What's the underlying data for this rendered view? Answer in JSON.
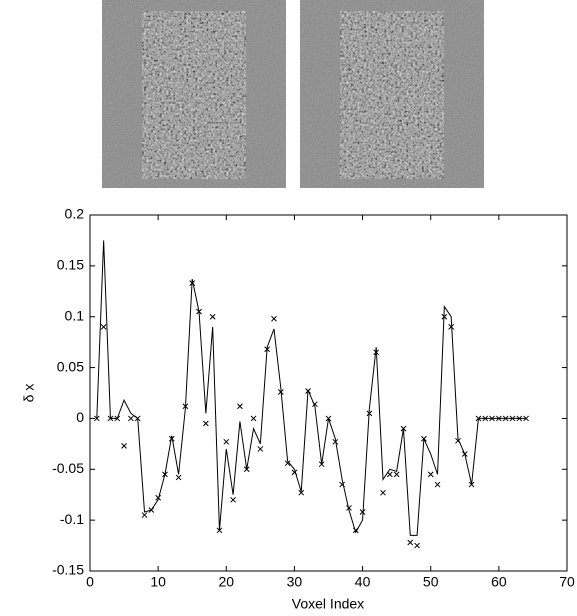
{
  "chart_data": {
    "type": "line",
    "xlabel": "Voxel Index",
    "ylabel": "δ x",
    "x": [
      1,
      2,
      3,
      4,
      5,
      6,
      7,
      8,
      9,
      10,
      11,
      12,
      13,
      14,
      15,
      16,
      17,
      18,
      19,
      20,
      21,
      22,
      23,
      24,
      25,
      26,
      27,
      28,
      29,
      30,
      31,
      32,
      33,
      34,
      35,
      36,
      37,
      38,
      39,
      40,
      41,
      42,
      43,
      44,
      45,
      46,
      47,
      48,
      49,
      50,
      51,
      52,
      53,
      54,
      55,
      56,
      57,
      58,
      59,
      60,
      61,
      62,
      63,
      64
    ],
    "series": [
      {
        "style": "line",
        "color": "#000000",
        "values": [
          0,
          0.175,
          0,
          0,
          0.018,
          0.005,
          0,
          -0.092,
          -0.09,
          -0.08,
          -0.055,
          -0.017,
          -0.055,
          0.01,
          0.137,
          0.105,
          0.005,
          0.09,
          -0.11,
          -0.03,
          -0.075,
          -0.003,
          -0.05,
          -0.01,
          -0.025,
          0.07,
          0.088,
          0.03,
          -0.042,
          -0.05,
          -0.072,
          0.028,
          0.012,
          -0.045,
          0,
          -0.02,
          -0.06,
          -0.09,
          -0.112,
          -0.1,
          0.01,
          0.07,
          -0.06,
          -0.05,
          -0.052,
          -0.01,
          -0.115,
          -0.115,
          -0.02,
          -0.035,
          -0.055,
          0.11,
          0.1,
          -0.02,
          -0.035,
          -0.065,
          0,
          0,
          0,
          0,
          0,
          0,
          0,
          0
        ]
      },
      {
        "style": "marker",
        "color": "#000000",
        "values": [
          0,
          0.09,
          0,
          0,
          -0.027,
          0,
          0,
          -0.095,
          -0.09,
          -0.078,
          -0.055,
          -0.02,
          -0.058,
          0.012,
          0.133,
          0.105,
          -0.005,
          0.1,
          -0.11,
          -0.023,
          -0.08,
          0.012,
          -0.05,
          0,
          -0.03,
          0.068,
          0.098,
          0.026,
          -0.044,
          -0.053,
          -0.073,
          0.027,
          0.014,
          -0.045,
          0,
          -0.023,
          -0.065,
          -0.088,
          -0.11,
          -0.092,
          0.005,
          0.065,
          -0.073,
          -0.055,
          -0.055,
          -0.01,
          -0.122,
          -0.125,
          -0.02,
          -0.055,
          -0.065,
          0.1,
          0.09,
          -0.022,
          -0.035,
          -0.065,
          0,
          0,
          0,
          0,
          0,
          0,
          0,
          0
        ]
      }
    ],
    "xlim": [
      0,
      70
    ],
    "xticks": [
      0,
      10,
      20,
      30,
      40,
      50,
      60,
      70
    ],
    "ylim": [
      -0.15,
      0.2
    ],
    "yticks": [
      -0.15,
      -0.1,
      -0.05,
      0,
      0.05,
      0.1,
      0.15,
      0.2
    ]
  }
}
